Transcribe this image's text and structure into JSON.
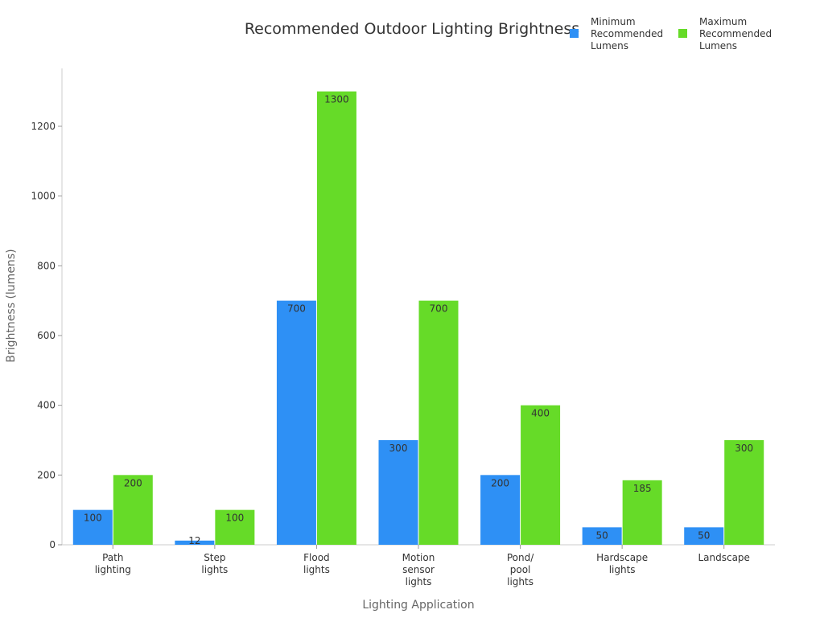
{
  "chart_data": {
    "type": "bar",
    "title": "Recommended Outdoor Lighting Brightness",
    "xlabel": "Lighting Application",
    "ylabel": "Brightness (lumens)",
    "categories": [
      "Path lighting",
      "Step lights",
      "Flood lights",
      "Motion sensor lights",
      "Pond/ pool lights",
      "Hardscape lights",
      "Landscape"
    ],
    "series": [
      {
        "name": "Minimum Recommended Lumens",
        "color": "#2e90f5",
        "values": [
          100,
          12,
          700,
          300,
          200,
          50,
          50
        ]
      },
      {
        "name": "Maximum Recommended Lumens",
        "color": "#66db28",
        "values": [
          200,
          100,
          1300,
          700,
          400,
          185,
          300
        ]
      }
    ],
    "ylim": [
      0,
      1366
    ],
    "yticks": [
      0,
      200,
      400,
      600,
      800,
      1000,
      1200
    ],
    "grid": false,
    "legend": "top-right"
  }
}
